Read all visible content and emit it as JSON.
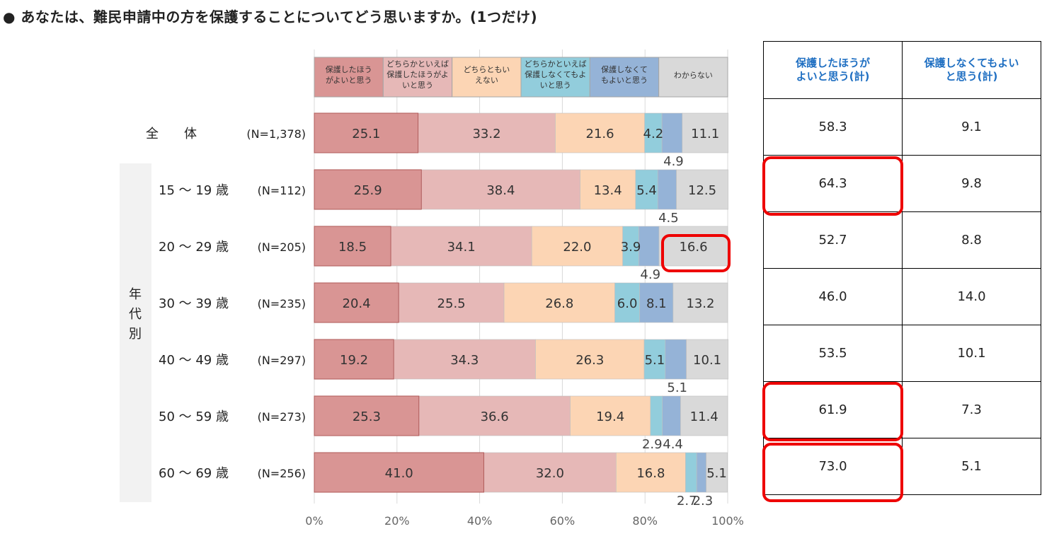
{
  "title": "● あなたは、難民申請中の方を保護することについてどう思いますか。(1つだけ)",
  "chart_data": {
    "type": "bar",
    "orientation": "horizontal",
    "stacked": "percent",
    "legend_position": "top",
    "xlim": [
      0,
      100
    ],
    "x_ticks": [
      "0%",
      "20%",
      "40%",
      "60%",
      "80%",
      "100%"
    ],
    "grid": true,
    "group_label": "年代別",
    "series": [
      {
        "name": "保護したほうがよいと思う",
        "color": "#d99594"
      },
      {
        "name": "どちらかといえば保護したほうがよいと思う",
        "color": "#e6b8b7"
      },
      {
        "name": "どちらともいえない",
        "color": "#fcd5b4"
      },
      {
        "name": "どちらかといえば保護しなくてもよいと思う",
        "color": "#92cddc"
      },
      {
        "name": "保護しなくてもよいと思う",
        "color": "#95b3d7"
      },
      {
        "name": "わからない",
        "color": "#d9d9d9"
      }
    ],
    "rows": [
      {
        "label": "全　　体",
        "n": "(N=1,378)",
        "values": [
          25.1,
          33.2,
          21.6,
          4.2,
          4.9,
          11.1
        ]
      },
      {
        "label": "15 ～ 19 歳",
        "n": "(N=112)",
        "values": [
          25.9,
          38.4,
          13.4,
          5.4,
          4.5,
          12.5
        ]
      },
      {
        "label": "20 ～ 29 歳",
        "n": "(N=205)",
        "values": [
          18.5,
          34.1,
          22.0,
          3.9,
          4.9,
          16.6
        ]
      },
      {
        "label": "30 ～ 39 歳",
        "n": "(N=235)",
        "values": [
          20.4,
          25.5,
          26.8,
          6.0,
          8.1,
          13.2
        ]
      },
      {
        "label": "40 ～ 49 歳",
        "n": "(N=297)",
        "values": [
          19.2,
          34.3,
          26.3,
          5.1,
          5.1,
          10.1
        ]
      },
      {
        "label": "50 ～ 59 歳",
        "n": "(N=273)",
        "values": [
          25.3,
          36.6,
          19.4,
          2.9,
          4.4,
          11.4
        ]
      },
      {
        "label": "60 ～ 69 歳",
        "n": "(N=256)",
        "values": [
          41.0,
          32.0,
          16.8,
          2.7,
          2.3,
          5.1
        ]
      }
    ]
  },
  "summary_table": {
    "headers": [
      "保護したほうが\nよいと思う(計)",
      "保護しなくてもよい\nと思う(計)"
    ],
    "rows": [
      [
        "58.3",
        "9.1"
      ],
      [
        "64.3",
        "9.8"
      ],
      [
        "52.7",
        "8.8"
      ],
      [
        "46.0",
        "14.0"
      ],
      [
        "53.5",
        "10.1"
      ],
      [
        "61.9",
        "7.3"
      ],
      [
        "73.0",
        "5.1"
      ]
    ],
    "highlight_color": "#ee0000"
  }
}
